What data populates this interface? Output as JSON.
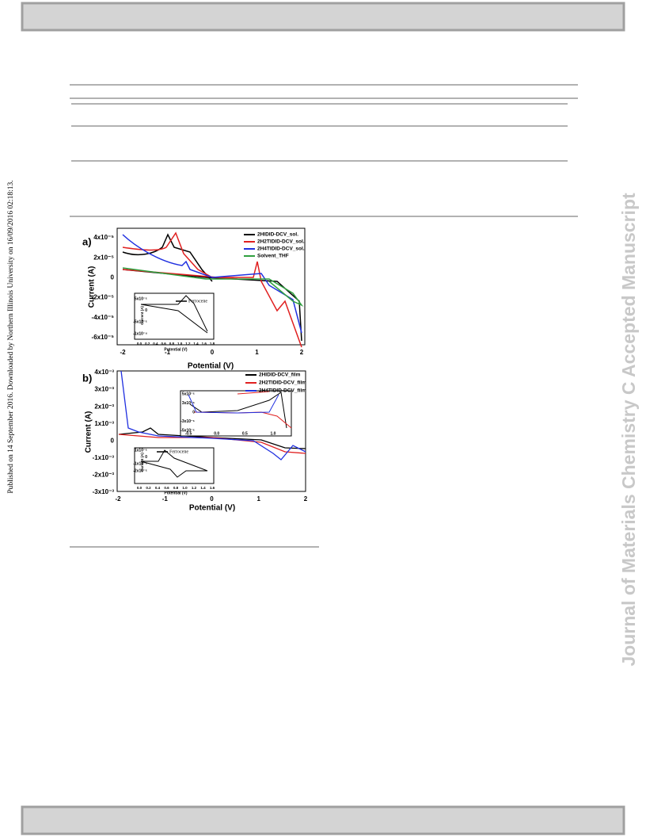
{
  "side_text": "Published on 14 September 2016. Downloaded by Northern Illinois University on 16/09/2016 02:18:13.",
  "watermark": "Journal of Materials Chemistry C Accepted Manuscript",
  "figure": {
    "panel_a": {
      "label": "a)",
      "y_label": "Current (A)",
      "x_label": "Potential (V)",
      "y_ticks": [
        "4x10⁻⁵",
        "2x10⁻⁵",
        "0",
        "-2x10⁻⁵",
        "-4x10⁻⁵",
        "-6x10⁻⁵"
      ],
      "x_ticks": [
        "-2",
        "-1",
        "0",
        "1",
        "2"
      ],
      "legend": [
        "2HIDID-DCV_sol.",
        "2H2TIDID-DCV_sol.",
        "2H4TIDID-DCV_sol.",
        "Solvent_THF"
      ],
      "inset": {
        "legend": "Ferrocene",
        "y_label": "Current (A)",
        "x_label": "Potential (V)",
        "y_ticks": [
          "5x10⁻⁵",
          "0",
          "-5x10⁻⁵",
          "-1x10⁻⁴"
        ],
        "x_ticks": [
          "0.0",
          "0.2",
          "0.4",
          "0.6",
          "0.8",
          "1.0",
          "1.2",
          "1.4",
          "1.6",
          "1.8"
        ]
      }
    },
    "panel_b": {
      "label": "b)",
      "y_label": "Current (A)",
      "x_label": "Potential (V)",
      "y_ticks": [
        "4x10⁻³",
        "3x10⁻³",
        "2x10⁻³",
        "1x10⁻³",
        "0",
        "-1x10⁻³",
        "-2x10⁻³",
        "-3x10⁻³"
      ],
      "x_ticks": [
        "-2",
        "-1",
        "0",
        "1",
        "2"
      ],
      "legend": [
        "2HIDID-DCV_film",
        "2H2TIDID-DCV_film",
        "2H4TIDID-DCV_film"
      ],
      "zoom_inset": {
        "y_ticks": [
          "5x10⁻⁵",
          "3x10⁻⁵",
          "0",
          "-3x10⁻⁵",
          "-5x10⁻⁵"
        ],
        "x_ticks": [
          "-0.5",
          "0.0",
          "0.5",
          "1.0"
        ]
      },
      "inset": {
        "legend": "Ferrocene",
        "y_label": "Current (A)",
        "x_label": "Potential (V)",
        "y_ticks": [
          "1x10⁻⁵",
          "0",
          "-1x10⁻⁵",
          "-2x10⁻⁵"
        ],
        "x_ticks": [
          "0.0",
          "0.2",
          "0.4",
          "0.6",
          "0.8",
          "1.0",
          "1.2",
          "1.4",
          "1.6"
        ]
      }
    }
  }
}
